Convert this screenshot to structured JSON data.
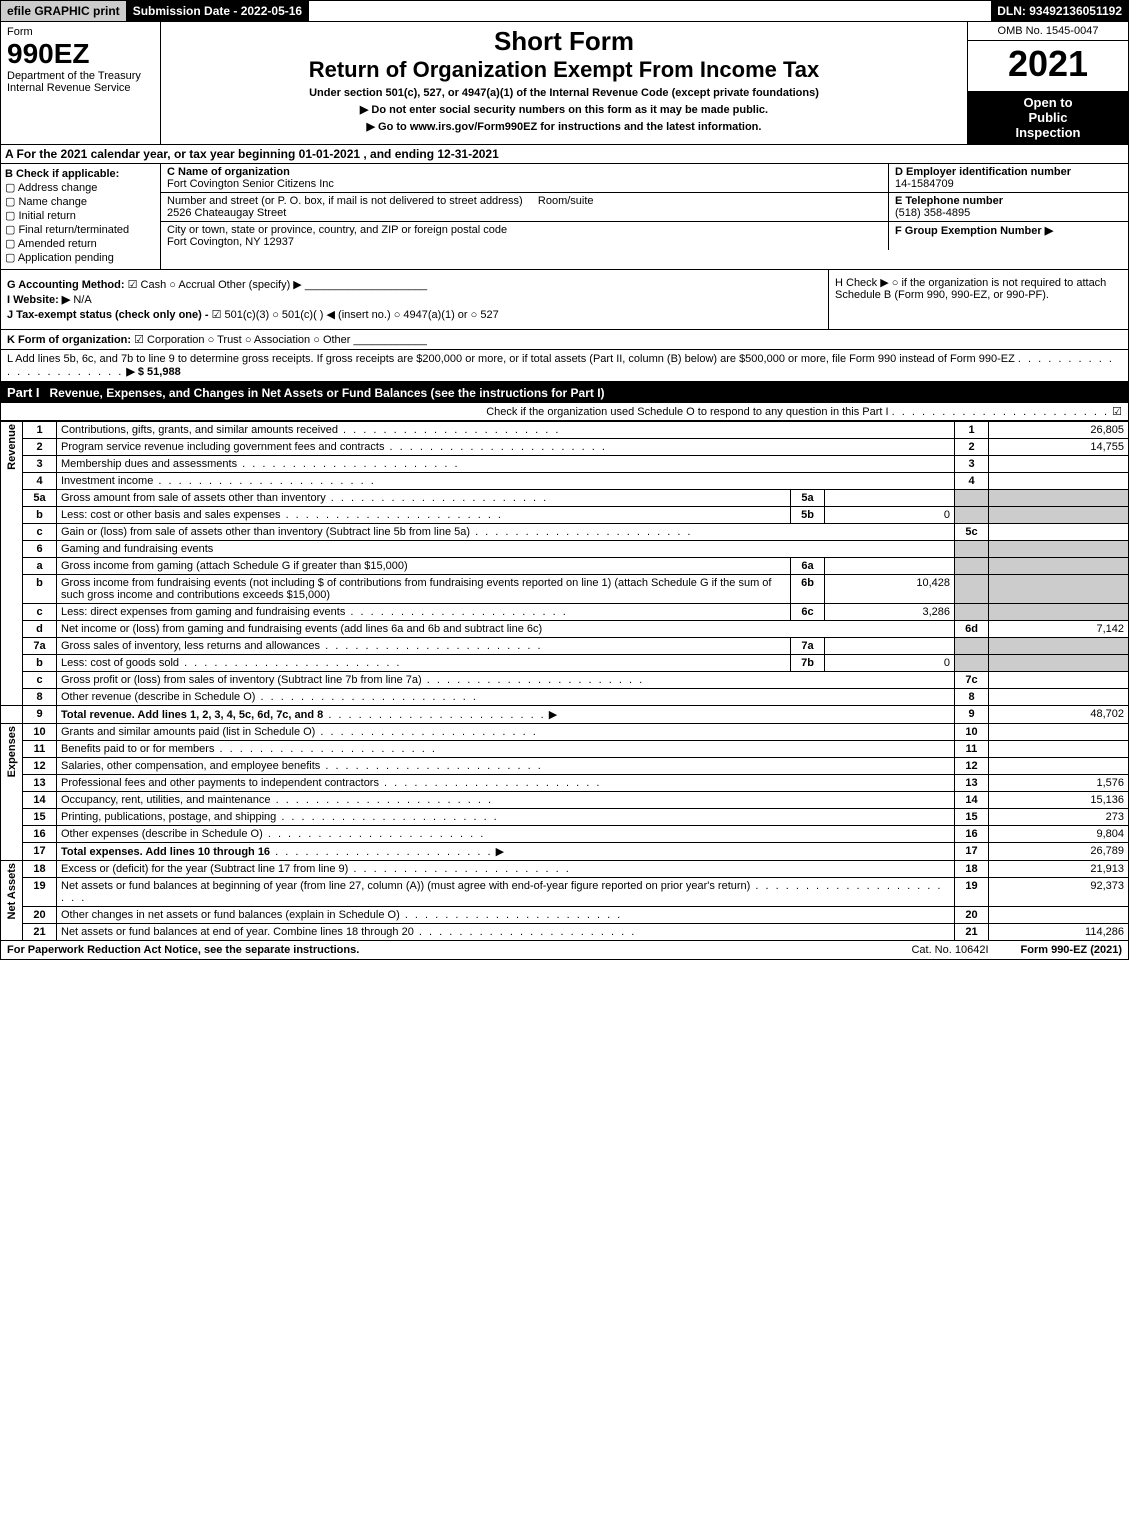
{
  "top": {
    "efile": "efile GRAPHIC print",
    "submission": "Submission Date - 2022-05-16",
    "dln": "DLN: 93492136051192"
  },
  "header": {
    "form_word": "Form",
    "form_num": "990EZ",
    "dept": "Department of the Treasury",
    "irs": "Internal Revenue Service",
    "short_form": "Short Form",
    "return_title": "Return of Organization Exempt From Income Tax",
    "under": "Under section 501(c), 527, or 4947(a)(1) of the Internal Revenue Code (except private foundations)",
    "no_ssn": "▶ Do not enter social security numbers on this form as it may be made public.",
    "goto": "▶ Go to www.irs.gov/Form990EZ for instructions and the latest information.",
    "omb": "OMB No. 1545-0047",
    "year": "2021",
    "inspection1": "Open to",
    "inspection2": "Public",
    "inspection3": "Inspection"
  },
  "row_a": "A  For the 2021 calendar year, or tax year beginning 01-01-2021 , and ending 12-31-2021",
  "b": {
    "label": "B  Check if applicable:",
    "opts": [
      "Address change",
      "Name change",
      "Initial return",
      "Final return/terminated",
      "Amended return",
      "Application pending"
    ]
  },
  "c": {
    "name_label": "C Name of organization",
    "name": "Fort Covington Senior Citizens Inc",
    "street_label": "Number and street (or P. O. box, if mail is not delivered to street address)",
    "room_label": "Room/suite",
    "street": "2526 Chateaugay Street",
    "city_label": "City or town, state or province, country, and ZIP or foreign postal code",
    "city": "Fort Covington, NY  12937"
  },
  "d": {
    "ein_label": "D Employer identification number",
    "ein": "14-1584709",
    "tel_label": "E Telephone number",
    "tel": "(518) 358-4895",
    "grp_label": "F Group Exemption Number  ▶"
  },
  "g": {
    "acct_label": "G Accounting Method:",
    "cash": "Cash",
    "accrual": "Accrual",
    "other": "Other (specify) ▶",
    "website_label": "I Website: ▶",
    "website": "N/A",
    "j_label": "J Tax-exempt status (check only one) -",
    "j_501c3": "501(c)(3)",
    "j_501c": "501(c)(  ) ◀ (insert no.)",
    "j_4947": "4947(a)(1) or",
    "j_527": "527"
  },
  "h": {
    "label": "H  Check ▶ ○ if the organization is not required to attach Schedule B (Form 990, 990-EZ, or 990-PF)."
  },
  "k": {
    "label": "K Form of organization:",
    "corp": "Corporation",
    "trust": "Trust",
    "assoc": "Association",
    "other": "Other"
  },
  "l": {
    "text": "L Add lines 5b, 6c, and 7b to line 9 to determine gross receipts. If gross receipts are $200,000 or more, or if total assets (Part II, column (B) below) are $500,000 or more, file Form 990 instead of Form 990-EZ",
    "amount": "▶ $ 51,988"
  },
  "part1": {
    "label": "Part I",
    "title": "Revenue, Expenses, and Changes in Net Assets or Fund Balances (see the instructions for Part I)",
    "check_line": "Check if the organization used Schedule O to respond to any question in this Part I",
    "check_mark": "☑"
  },
  "sections": {
    "revenue": "Revenue",
    "expenses": "Expenses",
    "netassets": "Net Assets"
  },
  "lines": {
    "l1": {
      "no": "1",
      "desc": "Contributions, gifts, grants, and similar amounts received",
      "col": "1",
      "val": "26,805"
    },
    "l2": {
      "no": "2",
      "desc": "Program service revenue including government fees and contracts",
      "col": "2",
      "val": "14,755"
    },
    "l3": {
      "no": "3",
      "desc": "Membership dues and assessments",
      "col": "3",
      "val": ""
    },
    "l4": {
      "no": "4",
      "desc": "Investment income",
      "col": "4",
      "val": ""
    },
    "l5a": {
      "no": "5a",
      "desc": "Gross amount from sale of assets other than inventory",
      "sub": "5a",
      "subval": ""
    },
    "l5b": {
      "no": "b",
      "desc": "Less: cost or other basis and sales expenses",
      "sub": "5b",
      "subval": "0"
    },
    "l5c": {
      "no": "c",
      "desc": "Gain or (loss) from sale of assets other than inventory (Subtract line 5b from line 5a)",
      "col": "5c",
      "val": ""
    },
    "l6": {
      "no": "6",
      "desc": "Gaming and fundraising events"
    },
    "l6a": {
      "no": "a",
      "desc": "Gross income from gaming (attach Schedule G if greater than $15,000)",
      "sub": "6a",
      "subval": ""
    },
    "l6b": {
      "no": "b",
      "desc": "Gross income from fundraising events (not including $               of contributions from fundraising events reported on line 1) (attach Schedule G if the sum of such gross income and contributions exceeds $15,000)",
      "sub": "6b",
      "subval": "10,428"
    },
    "l6c": {
      "no": "c",
      "desc": "Less: direct expenses from gaming and fundraising events",
      "sub": "6c",
      "subval": "3,286"
    },
    "l6d": {
      "no": "d",
      "desc": "Net income or (loss) from gaming and fundraising events (add lines 6a and 6b and subtract line 6c)",
      "col": "6d",
      "val": "7,142"
    },
    "l7a": {
      "no": "7a",
      "desc": "Gross sales of inventory, less returns and allowances",
      "sub": "7a",
      "subval": ""
    },
    "l7b": {
      "no": "b",
      "desc": "Less: cost of goods sold",
      "sub": "7b",
      "subval": "0"
    },
    "l7c": {
      "no": "c",
      "desc": "Gross profit or (loss) from sales of inventory (Subtract line 7b from line 7a)",
      "col": "7c",
      "val": ""
    },
    "l8": {
      "no": "8",
      "desc": "Other revenue (describe in Schedule O)",
      "col": "8",
      "val": ""
    },
    "l9": {
      "no": "9",
      "desc": "Total revenue. Add lines 1, 2, 3, 4, 5c, 6d, 7c, and 8",
      "col": "9",
      "val": "48,702"
    },
    "l10": {
      "no": "10",
      "desc": "Grants and similar amounts paid (list in Schedule O)",
      "col": "10",
      "val": ""
    },
    "l11": {
      "no": "11",
      "desc": "Benefits paid to or for members",
      "col": "11",
      "val": ""
    },
    "l12": {
      "no": "12",
      "desc": "Salaries, other compensation, and employee benefits",
      "col": "12",
      "val": ""
    },
    "l13": {
      "no": "13",
      "desc": "Professional fees and other payments to independent contractors",
      "col": "13",
      "val": "1,576"
    },
    "l14": {
      "no": "14",
      "desc": "Occupancy, rent, utilities, and maintenance",
      "col": "14",
      "val": "15,136"
    },
    "l15": {
      "no": "15",
      "desc": "Printing, publications, postage, and shipping",
      "col": "15",
      "val": "273"
    },
    "l16": {
      "no": "16",
      "desc": "Other expenses (describe in Schedule O)",
      "col": "16",
      "val": "9,804"
    },
    "l17": {
      "no": "17",
      "desc": "Total expenses. Add lines 10 through 16",
      "col": "17",
      "val": "26,789"
    },
    "l18": {
      "no": "18",
      "desc": "Excess or (deficit) for the year (Subtract line 17 from line 9)",
      "col": "18",
      "val": "21,913"
    },
    "l19": {
      "no": "19",
      "desc": "Net assets or fund balances at beginning of year (from line 27, column (A)) (must agree with end-of-year figure reported on prior year's return)",
      "col": "19",
      "val": "92,373"
    },
    "l20": {
      "no": "20",
      "desc": "Other changes in net assets or fund balances (explain in Schedule O)",
      "col": "20",
      "val": ""
    },
    "l21": {
      "no": "21",
      "desc": "Net assets or fund balances at end of year. Combine lines 18 through 20",
      "col": "21",
      "val": "114,286"
    }
  },
  "footer": {
    "pra": "For Paperwork Reduction Act Notice, see the separate instructions.",
    "cat": "Cat. No. 10642I",
    "form": "Form 990-EZ (2021)"
  },
  "colors": {
    "black": "#000000",
    "white": "#ffffff",
    "grey": "#cccccc"
  }
}
